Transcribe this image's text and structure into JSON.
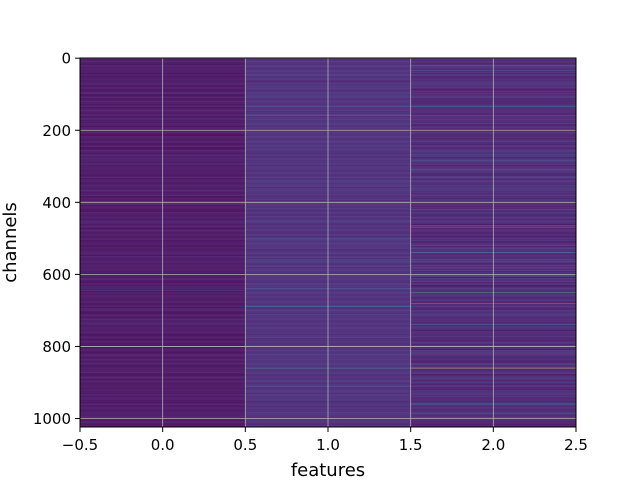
{
  "chart_data": {
    "type": "heatmap",
    "title": "",
    "xlabel": "features",
    "ylabel": "channels",
    "columns": [
      0,
      1,
      2
    ],
    "n_rows": 1024,
    "xlim": [
      -0.5,
      2.5
    ],
    "ylim": [
      1023.5,
      -0.5
    ],
    "y_inverted": true,
    "x_ticks": [
      "−0.5",
      "0.0",
      "0.5",
      "1.0",
      "1.5",
      "2.0",
      "2.5"
    ],
    "x_tick_values": [
      -0.5,
      0.0,
      0.5,
      1.0,
      1.5,
      2.0,
      2.5
    ],
    "y_ticks": [
      "0",
      "200",
      "400",
      "600",
      "800",
      "1000"
    ],
    "y_tick_values": [
      0,
      200,
      400,
      600,
      800,
      1000
    ],
    "grid": true,
    "colormap": "viridis",
    "value_range": [
      0,
      1
    ],
    "base_level": [
      0.01,
      0.08,
      0.03
    ],
    "highlights": [
      {
        "column": 0,
        "rows": [
          645,
          800
        ],
        "value": 0.18
      },
      {
        "column": 1,
        "rows": [
          105,
          135,
          160,
          410,
          500,
          560,
          640
        ],
        "value": 0.3
      },
      {
        "column": 1,
        "rows": [
          690
        ],
        "value": 0.42
      },
      {
        "column": 1,
        "rows": [
          860
        ],
        "value": 0.55
      },
      {
        "column": 1,
        "rows": [
          910
        ],
        "value": 0.35
      },
      {
        "column": 2,
        "rows": [
          20,
          80,
          105,
          160,
          285,
          310,
          360,
          420,
          465,
          520,
          560,
          580,
          620,
          710,
          740,
          820,
          900,
          960,
          985
        ],
        "value": 0.35
      },
      {
        "column": 2,
        "rows": [
          135,
          470,
          540
        ],
        "value": 0.48
      },
      {
        "column": 2,
        "rows": [
          650,
          680
        ],
        "value": 0.65
      },
      {
        "column": 2,
        "rows": [
          860
        ],
        "value": 0.95
      }
    ]
  }
}
